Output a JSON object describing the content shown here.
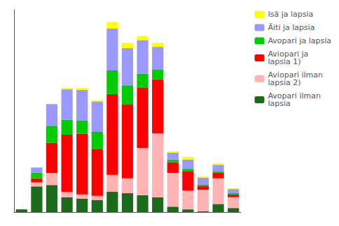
{
  "chart_data": {
    "type": "bar",
    "stacked": true,
    "categories": [
      null,
      null,
      null,
      null,
      null,
      null,
      null,
      null,
      null,
      null,
      null,
      null,
      null,
      null,
      null
    ],
    "series": [
      {
        "name": "Avopari ilman\nlapsia",
        "color": "#1a6b1a",
        "values": [
          4,
          38,
          40,
          22,
          20,
          18,
          30,
          28,
          25,
          22,
          8,
          4,
          1,
          12,
          6
        ]
      },
      {
        "name": "Aviopari ilman\nlapsia 2)",
        "color": "#ffb3b3",
        "values": [
          0,
          6,
          18,
          8,
          6,
          6,
          25,
          22,
          70,
          95,
          50,
          28,
          32,
          38,
          16
        ]
      },
      {
        "name": "Aviopari ja\nlapsia 1)",
        "color": "#ff0000",
        "values": [
          0,
          6,
          45,
          85,
          90,
          70,
          120,
          110,
          90,
          80,
          16,
          28,
          6,
          8,
          4
        ]
      },
      {
        "name": "Avopari ja lapsia",
        "color": "#00cc00",
        "values": [
          0,
          8,
          25,
          22,
          20,
          25,
          35,
          28,
          20,
          14,
          4,
          4,
          2,
          2,
          2
        ]
      },
      {
        "name": "Äiti ja lapsia",
        "color": "#9999ff",
        "values": [
          0,
          8,
          32,
          45,
          45,
          45,
          62,
          55,
          50,
          34,
          10,
          14,
          10,
          10,
          6
        ]
      },
      {
        "name": "Isä ja lapsia",
        "color": "#ffff00",
        "values": [
          0,
          0,
          0,
          2,
          3,
          2,
          10,
          8,
          6,
          6,
          2,
          4,
          2,
          2,
          1
        ]
      }
    ],
    "ylim": [
      0,
      300
    ],
    "grid": false,
    "legend": "upper right",
    "tick_labels": false
  }
}
